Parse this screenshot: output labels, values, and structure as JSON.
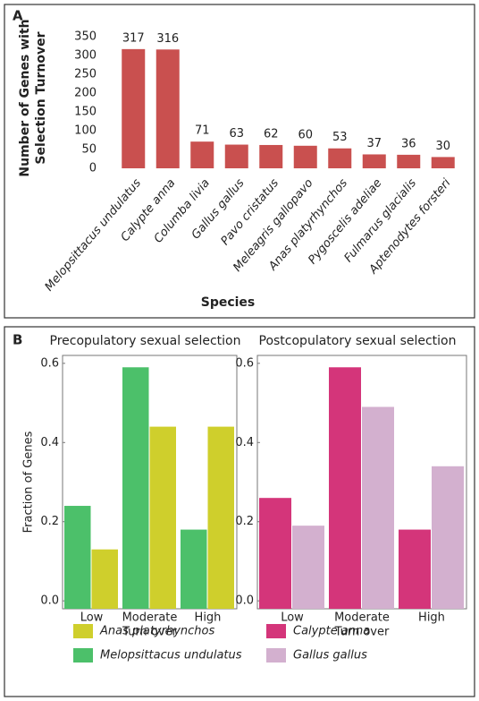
{
  "chart_data": [
    {
      "type": "bar",
      "panel_label": "A",
      "y_label": [
        "Number of Genes with",
        "Selection Turnover"
      ],
      "x_label": "Species",
      "categories": [
        "Melopsittacus undulatus",
        "Calypte anna",
        "Columba livia",
        "Gallus gallus",
        "Pavo cristatus",
        "Meleagris gallopavo",
        "Anas platyrhynchos",
        "Pygoscelis adeliae",
        "Fulmarus glacialis",
        "Aptenodytes forsteri"
      ],
      "values": [
        317,
        316,
        71,
        63,
        62,
        60,
        53,
        37,
        36,
        30
      ],
      "color": "#c9504f",
      "ylim": [
        0,
        350
      ],
      "yticks": [
        0,
        50,
        100,
        150,
        200,
        250,
        300,
        350
      ]
    },
    {
      "type": "grouped-bar",
      "panel_label": "B",
      "title": "Precopulatory sexual selection",
      "y_label": "Fraction of Genes",
      "x_label": "Turn over",
      "categories": [
        "Low",
        "Moderate",
        "High"
      ],
      "series": [
        {
          "name": "Melopsittacus undulatus",
          "color": "#4cc06a",
          "values": [
            0.24,
            0.59,
            0.18
          ]
        },
        {
          "name": "Anas platyrhynchos",
          "color": "#cfcf2c",
          "values": [
            0.13,
            0.44,
            0.44
          ]
        }
      ],
      "legend_order": [
        1,
        0
      ],
      "ylim": [
        -0.02,
        0.62
      ],
      "yticks": [
        {
          "value": 0,
          "label": "0.0"
        },
        0.2,
        0.4,
        0.6
      ]
    },
    {
      "type": "grouped-bar",
      "title": "Postcopulatory sexual selection",
      "x_label": "Turn over",
      "categories": [
        "Low",
        "Moderate",
        "High"
      ],
      "series": [
        {
          "name": "Calypte anna",
          "color": "#d4357a",
          "values": [
            0.26,
            0.59,
            0.18
          ]
        },
        {
          "name": "Gallus gallus",
          "color": "#d3b0cf",
          "values": [
            0.19,
            0.49,
            0.34
          ]
        }
      ],
      "legend_order": [
        0,
        1
      ],
      "ylim": [
        -0.02,
        0.62
      ],
      "yticks": [
        {
          "value": 0,
          "label": "0.0"
        },
        0.2,
        0.4,
        0.6
      ]
    }
  ]
}
